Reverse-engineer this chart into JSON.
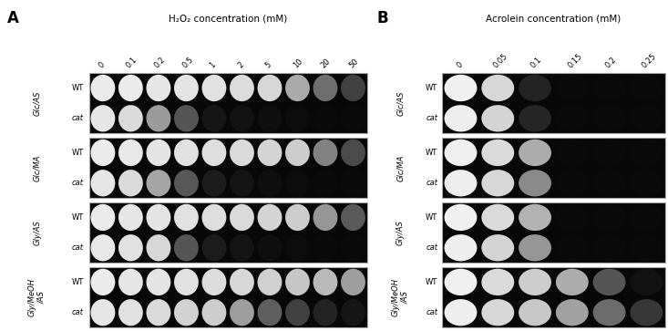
{
  "panel_A": {
    "title": "H₂O₂ concentration (mM)",
    "label": "A",
    "x_labels": [
      "0",
      "0.1",
      "0.2",
      "0.5",
      "1",
      "2",
      "5",
      "10",
      "20",
      "50"
    ],
    "row_groups": [
      "Glc/AS",
      "Glc/MA",
      "Gly/AS",
      "Gly/MeOH\n/AS"
    ],
    "row_labels": [
      "WT",
      "cat",
      "WT",
      "cat",
      "WT",
      "cat",
      "WT",
      "cat"
    ],
    "dot_colors": [
      [
        235,
        235,
        230,
        228,
        225,
        220,
        215,
        170,
        110,
        65
      ],
      [
        230,
        218,
        155,
        85,
        22,
        18,
        15,
        12,
        10,
        10
      ],
      [
        235,
        232,
        228,
        225,
        222,
        218,
        212,
        205,
        130,
        75
      ],
      [
        230,
        218,
        165,
        88,
        28,
        20,
        15,
        12,
        10,
        10
      ],
      [
        235,
        230,
        228,
        225,
        222,
        218,
        212,
        205,
        150,
        90
      ],
      [
        232,
        225,
        215,
        85,
        28,
        20,
        15,
        12,
        10,
        10
      ],
      [
        235,
        230,
        228,
        225,
        220,
        215,
        208,
        198,
        185,
        158
      ],
      [
        230,
        225,
        218,
        210,
        205,
        158,
        95,
        65,
        35,
        22
      ]
    ],
    "num_cols": 10
  },
  "panel_B": {
    "title": "Acrolein concentration (mM)",
    "label": "B",
    "x_labels": [
      "0",
      "0.05",
      "0.1",
      "0.15",
      "0.2",
      "0.25"
    ],
    "row_groups": [
      "Glc/AS",
      "Glc/MA",
      "Gly/AS",
      "Gly/MeOH\n/AS"
    ],
    "row_labels": [
      "WT",
      "cat",
      "WT",
      "cat",
      "WT",
      "cat",
      "WT",
      "cat"
    ],
    "dot_colors": [
      [
        240,
        215,
        35,
        10,
        10,
        10
      ],
      [
        238,
        212,
        38,
        10,
        10,
        10
      ],
      [
        240,
        218,
        172,
        10,
        10,
        10
      ],
      [
        238,
        215,
        138,
        10,
        10,
        10
      ],
      [
        240,
        218,
        178,
        10,
        10,
        10
      ],
      [
        238,
        212,
        150,
        10,
        10,
        10
      ],
      [
        240,
        218,
        205,
        172,
        85,
        18
      ],
      [
        238,
        215,
        200,
        162,
        108,
        55
      ]
    ],
    "num_cols": 6
  },
  "fig_bg": "#ffffff",
  "panel_outer_bg": "#ffffff",
  "black_bg": "#080808",
  "border_color": "#888888",
  "label_color": "#000000"
}
